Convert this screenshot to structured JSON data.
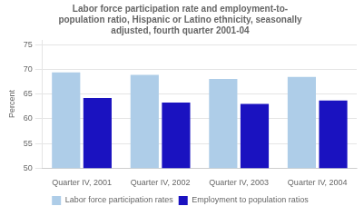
{
  "chart_data": {
    "type": "bar",
    "title": "Labor force participation rate and employment-to-\npopulation ratio, Hispanic or Latino ethnicity, seasonally\nadjusted, fourth quarter 2001-04",
    "ylabel": "Percent",
    "categories": [
      "Quarter IV, 2001",
      "Quarter IV, 2002",
      "Quarter IV, 2003",
      "Quarter IV, 2004"
    ],
    "series": [
      {
        "name": "Labor force participation rates",
        "color": "#aecde8",
        "values": [
          69.4,
          68.9,
          68.1,
          68.5
        ]
      },
      {
        "name": "Employment to population ratios",
        "color": "#1a12c0",
        "values": [
          64.2,
          63.3,
          63.0,
          63.7
        ]
      }
    ],
    "ylim": [
      50,
      76
    ],
    "yticks": [
      50,
      55,
      60,
      65,
      70,
      75
    ],
    "grid": true,
    "legend": "bottom"
  }
}
